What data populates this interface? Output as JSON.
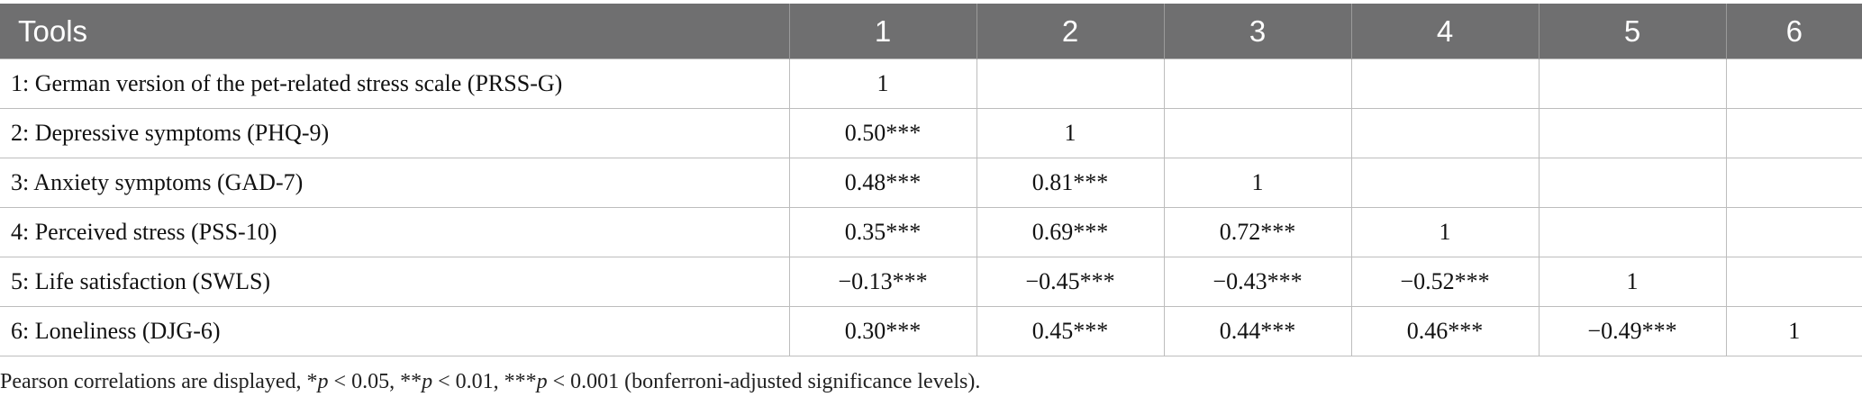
{
  "table": {
    "headers": [
      "Tools",
      "1",
      "2",
      "3",
      "4",
      "5",
      "6"
    ],
    "rows": [
      [
        "1: German version of the pet-related stress scale (PRSS-G)",
        "1",
        "",
        "",
        "",
        "",
        ""
      ],
      [
        "2: Depressive symptoms (PHQ-9)",
        "0.50***",
        "1",
        "",
        "",
        "",
        ""
      ],
      [
        "3: Anxiety symptoms (GAD-7)",
        "0.48***",
        "0.81***",
        "1",
        "",
        "",
        ""
      ],
      [
        "4: Perceived stress (PSS-10)",
        "0.35***",
        "0.69***",
        "0.72***",
        "1",
        "",
        ""
      ],
      [
        "5: Life satisfaction (SWLS)",
        "−0.13***",
        "−0.45***",
        "−0.43***",
        "−0.52***",
        "1",
        ""
      ],
      [
        "6: Loneliness (DJG-6)",
        "0.30***",
        "0.45***",
        "0.44***",
        "0.46***",
        "−0.49***",
        "1"
      ]
    ]
  },
  "footnote": {
    "part1": "Pearson correlations are displayed, *",
    "p1": "p",
    "part2": " < 0.05, **",
    "p2": "p",
    "part3": " < 0.01, ***",
    "p3": "p",
    "part4": " < 0.001 (bonferroni-adjusted significance levels)."
  }
}
